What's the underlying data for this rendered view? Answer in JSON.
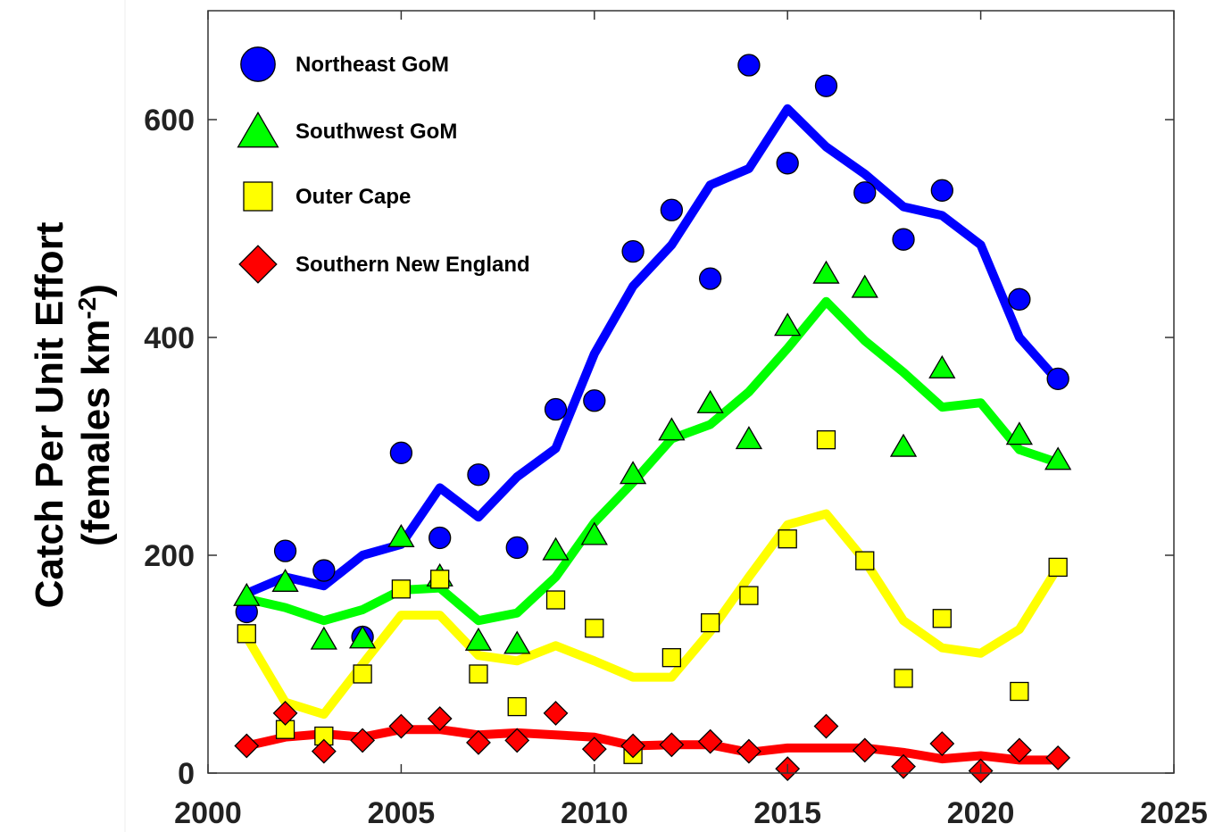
{
  "chart_data": {
    "type": "scatter",
    "ylabel_line1": "Catch Per Unit Effort",
    "ylabel_line2_prefix": "(females km",
    "ylabel_line2_sup": "-2",
    "ylabel_line2_suffix": ")",
    "xlabel": "",
    "xlim": [
      2000,
      2025
    ],
    "ylim": [
      0,
      700
    ],
    "xticks": [
      2000,
      2005,
      2010,
      2015,
      2020,
      2025
    ],
    "yticks": [
      0,
      200,
      400,
      600
    ],
    "grid": false,
    "legend_position": "top-left",
    "series": [
      {
        "name": "Northeast GoM",
        "color": "#0000ff",
        "marker": "circle",
        "points": {
          "x": [
            2001,
            2002,
            2003,
            2004,
            2005,
            2006,
            2007,
            2008,
            2009,
            2010,
            2011,
            2012,
            2013,
            2014,
            2015,
            2016,
            2017,
            2018,
            2019,
            2020,
            2021,
            2022
          ],
          "y": [
            148,
            204,
            186,
            125,
            294,
            216,
            274,
            207,
            334,
            342,
            479,
            517,
            454,
            650,
            560,
            631,
            533,
            490,
            535,
            null,
            435,
            362
          ]
        },
        "trend": {
          "x": [
            2001,
            2002,
            2003,
            2004,
            2005,
            2006,
            2007,
            2008,
            2009,
            2010,
            2011,
            2012,
            2013,
            2014,
            2015,
            2016,
            2017,
            2018,
            2019,
            2020,
            2021,
            2022
          ],
          "y": [
            165,
            180,
            172,
            200,
            210,
            262,
            235,
            272,
            298,
            385,
            447,
            485,
            540,
            555,
            610,
            575,
            550,
            520,
            512,
            485,
            400,
            360
          ]
        }
      },
      {
        "name": "Southwest GoM",
        "color": "#00ff00",
        "marker": "triangle",
        "points": {
          "x": [
            2001,
            2002,
            2003,
            2004,
            2005,
            2006,
            2007,
            2008,
            2009,
            2010,
            2011,
            2012,
            2013,
            2014,
            2015,
            2016,
            2017,
            2018,
            2019,
            2020,
            2021,
            2022
          ],
          "y": [
            163,
            176,
            123,
            124,
            217,
            181,
            122,
            119,
            205,
            219,
            275,
            315,
            340,
            307,
            411,
            459,
            446,
            300,
            372,
            null,
            311,
            288
          ]
        },
        "trend": {
          "x": [
            2001,
            2002,
            2003,
            2004,
            2005,
            2006,
            2007,
            2008,
            2009,
            2010,
            2011,
            2012,
            2013,
            2014,
            2015,
            2016,
            2017,
            2018,
            2019,
            2020,
            2021,
            2022
          ],
          "y": [
            160,
            152,
            140,
            150,
            168,
            170,
            140,
            147,
            180,
            230,
            267,
            307,
            320,
            350,
            390,
            433,
            397,
            368,
            336,
            340,
            297,
            285
          ]
        }
      },
      {
        "name": "Outer Cape",
        "color": "#ffff00",
        "marker": "square",
        "points": {
          "x": [
            2001,
            2002,
            2003,
            2004,
            2005,
            2006,
            2007,
            2008,
            2009,
            2010,
            2011,
            2012,
            2013,
            2014,
            2015,
            2016,
            2017,
            2018,
            2019,
            2020,
            2021,
            2022
          ],
          "y": [
            128,
            40,
            34,
            91,
            169,
            178,
            91,
            61,
            159,
            133,
            17,
            106,
            138,
            163,
            215,
            306,
            195,
            87,
            142,
            null,
            75,
            189
          ]
        },
        "trend": {
          "x": [
            2001,
            2002,
            2003,
            2004,
            2005,
            2006,
            2007,
            2008,
            2009,
            2010,
            2011,
            2012,
            2013,
            2014,
            2015,
            2016,
            2017,
            2018,
            2019,
            2020,
            2021,
            2022
          ],
          "y": [
            125,
            65,
            54,
            100,
            145,
            145,
            108,
            103,
            117,
            103,
            88,
            88,
            130,
            180,
            228,
            238,
            195,
            140,
            115,
            110,
            132,
            189
          ]
        }
      },
      {
        "name": "Southern New England",
        "color": "#ff0000",
        "marker": "diamond",
        "points": {
          "x": [
            2001,
            2002,
            2003,
            2004,
            2005,
            2006,
            2007,
            2008,
            2009,
            2010,
            2011,
            2012,
            2013,
            2014,
            2015,
            2016,
            2017,
            2018,
            2019,
            2020,
            2021,
            2022
          ],
          "y": [
            25,
            55,
            20,
            30,
            43,
            50,
            28,
            30,
            55,
            22,
            25,
            26,
            29,
            20,
            4,
            43,
            21,
            6,
            27,
            2,
            21,
            14
          ]
        },
        "trend": {
          "x": [
            2001,
            2002,
            2003,
            2004,
            2005,
            2006,
            2007,
            2008,
            2009,
            2010,
            2011,
            2012,
            2013,
            2014,
            2015,
            2016,
            2017,
            2018,
            2019,
            2020,
            2021,
            2022
          ],
          "y": [
            25,
            33,
            36,
            33,
            40,
            40,
            35,
            37,
            35,
            33,
            25,
            26,
            26,
            19,
            23,
            23,
            23,
            19,
            13,
            16,
            12,
            12
          ]
        }
      }
    ]
  }
}
